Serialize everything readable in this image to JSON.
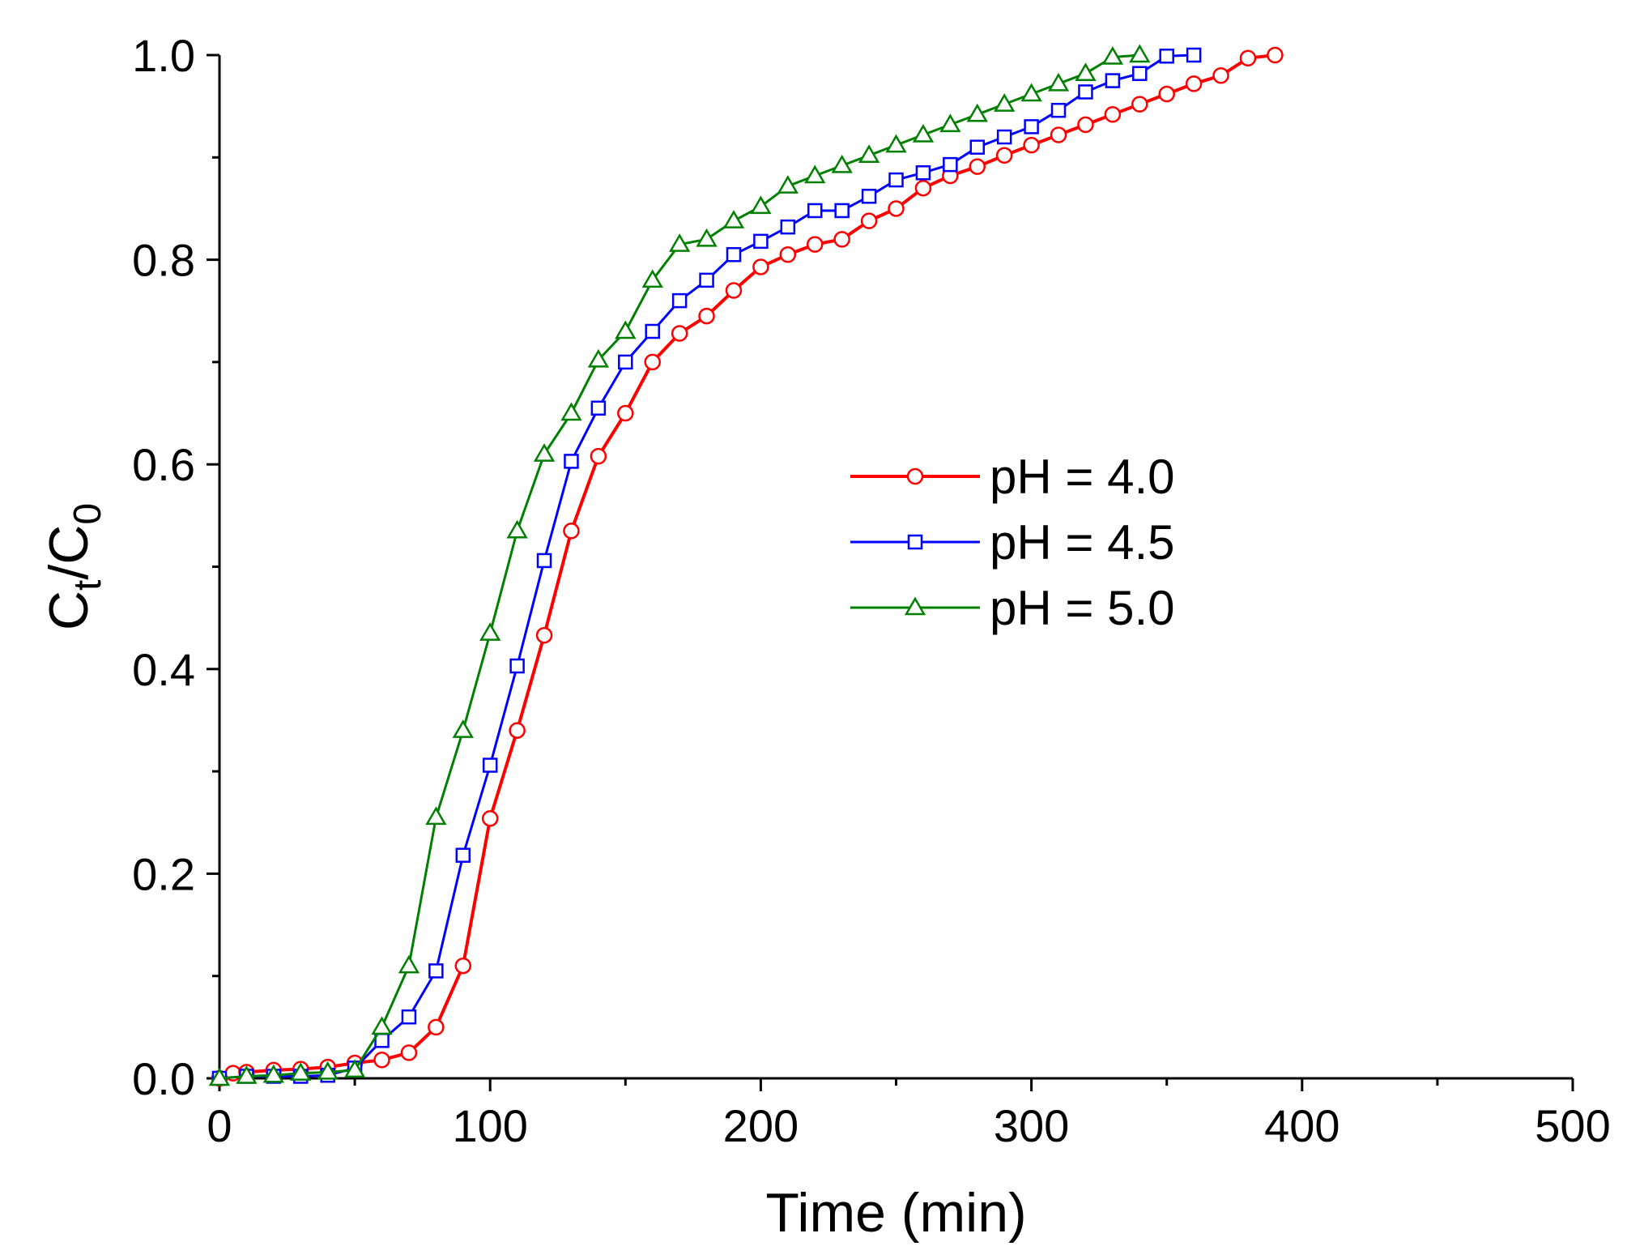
{
  "chart_data": {
    "type": "line",
    "title": "",
    "xlabel": "Time (min)",
    "ylabel": {
      "base1": "C",
      "sub1": "t",
      "slash": "/",
      "base2": "C",
      "sub2": "0"
    },
    "xlim": [
      0,
      500
    ],
    "ylim": [
      0.0,
      1.0
    ],
    "x_ticks": [
      0,
      100,
      200,
      300,
      400,
      500
    ],
    "x_tick_labels": [
      "0",
      "100",
      "200",
      "300",
      "400",
      "500"
    ],
    "y_ticks": [
      0.0,
      0.2,
      0.4,
      0.6,
      0.8,
      1.0
    ],
    "y_tick_labels": [
      "0.0",
      "0.2",
      "0.4",
      "0.6",
      "0.8",
      "1.0"
    ],
    "grid": false,
    "legend_position": "right-center",
    "series": [
      {
        "name": "pH = 4.0",
        "color": "#ff0000",
        "marker": "circle",
        "x": [
          0,
          5,
          10,
          20,
          30,
          40,
          50,
          60,
          70,
          80,
          90,
          100,
          110,
          120,
          130,
          140,
          150,
          160,
          170,
          180,
          190,
          200,
          210,
          220,
          230,
          240,
          250,
          260,
          270,
          280,
          290,
          300,
          310,
          320,
          330,
          340,
          350,
          360,
          370,
          380,
          390
        ],
        "y": [
          0.0,
          0.005,
          0.006,
          0.008,
          0.009,
          0.011,
          0.015,
          0.018,
          0.025,
          0.05,
          0.11,
          0.254,
          0.34,
          0.433,
          0.535,
          0.608,
          0.65,
          0.7,
          0.728,
          0.745,
          0.77,
          0.793,
          0.805,
          0.815,
          0.82,
          0.838,
          0.85,
          0.87,
          0.882,
          0.891,
          0.902,
          0.912,
          0.922,
          0.932,
          0.942,
          0.952,
          0.962,
          0.972,
          0.98,
          0.997,
          1.0
        ]
      },
      {
        "name": "pH = 4.5",
        "color": "#0000ff",
        "marker": "square",
        "x": [
          0,
          10,
          20,
          30,
          40,
          50,
          60,
          70,
          80,
          90,
          100,
          110,
          120,
          130,
          140,
          150,
          160,
          170,
          180,
          190,
          200,
          210,
          220,
          230,
          240,
          250,
          260,
          270,
          280,
          290,
          300,
          310,
          320,
          330,
          340,
          350,
          360
        ],
        "y": [
          0.0,
          0.002,
          0.002,
          0.002,
          0.003,
          0.01,
          0.037,
          0.06,
          0.105,
          0.218,
          0.306,
          0.403,
          0.506,
          0.603,
          0.655,
          0.7,
          0.73,
          0.76,
          0.78,
          0.805,
          0.818,
          0.832,
          0.848,
          0.848,
          0.862,
          0.878,
          0.885,
          0.893,
          0.91,
          0.92,
          0.93,
          0.946,
          0.964,
          0.975,
          0.982,
          0.999,
          1.0
        ]
      },
      {
        "name": "pH = 5.0",
        "color": "#008000",
        "marker": "triangle",
        "x": [
          0,
          10,
          20,
          30,
          40,
          50,
          60,
          70,
          80,
          90,
          100,
          110,
          120,
          130,
          140,
          150,
          160,
          170,
          180,
          190,
          200,
          210,
          220,
          230,
          240,
          250,
          260,
          270,
          280,
          290,
          300,
          310,
          320,
          330,
          340
        ],
        "y": [
          0.0,
          0.002,
          0.003,
          0.005,
          0.006,
          0.008,
          0.05,
          0.11,
          0.255,
          0.34,
          0.435,
          0.535,
          0.61,
          0.65,
          0.702,
          0.73,
          0.78,
          0.815,
          0.82,
          0.838,
          0.852,
          0.872,
          0.882,
          0.892,
          0.902,
          0.912,
          0.922,
          0.932,
          0.942,
          0.952,
          0.962,
          0.972,
          0.982,
          0.998,
          1.0
        ]
      }
    ]
  }
}
